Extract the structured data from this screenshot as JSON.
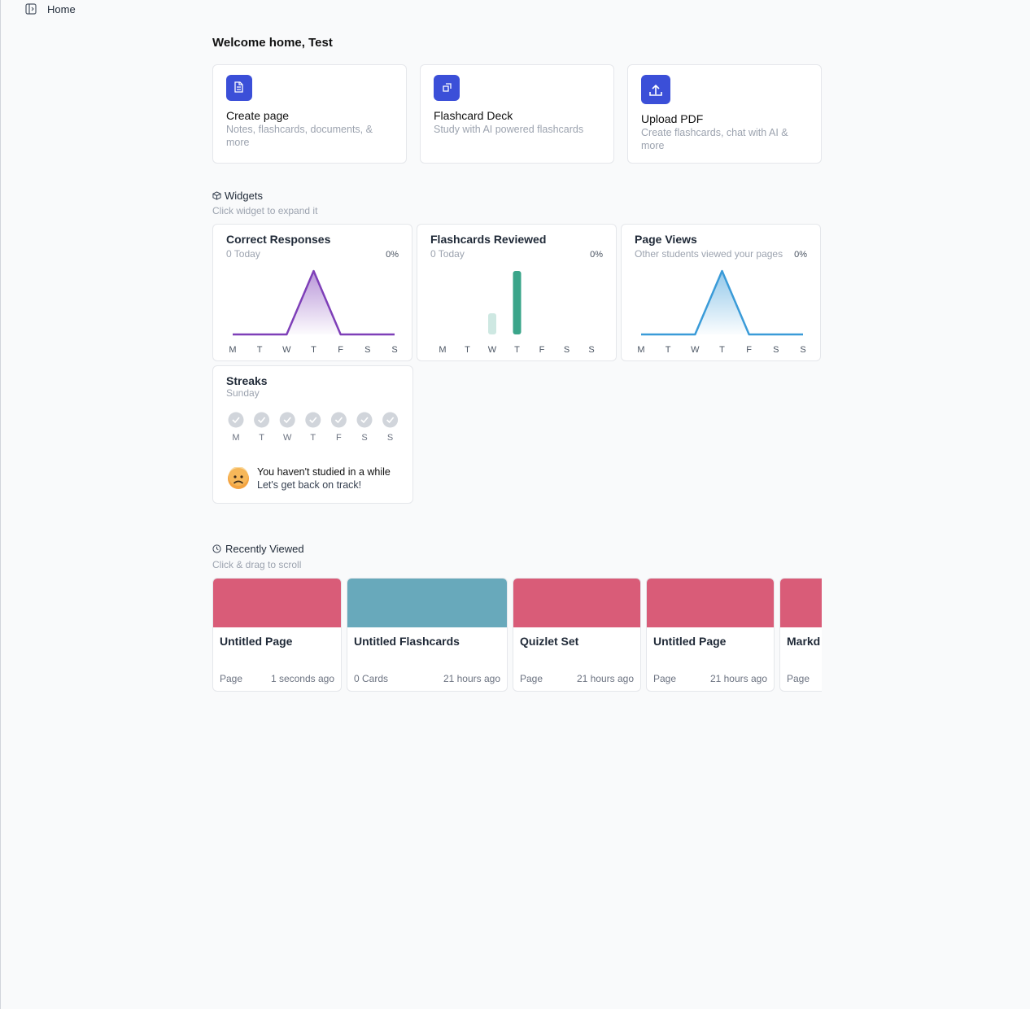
{
  "topbar": {
    "title": "Home"
  },
  "header": {
    "title": "Welcome home, Test"
  },
  "actions": [
    {
      "title": "Create page",
      "subtitle": "Notes, flashcards, documents, & more"
    },
    {
      "title": "Flashcard Deck",
      "subtitle": "Study with AI powered flashcards"
    },
    {
      "title": "Upload PDF",
      "subtitle": "Create flashcards, chat with AI & more"
    }
  ],
  "widgets": {
    "title": "Widgets",
    "subtitle": "Click widget to expand it",
    "days": [
      "M",
      "T",
      "W",
      "T",
      "F",
      "S",
      "S"
    ],
    "items": [
      {
        "title": "Correct Responses",
        "subtitle": "0 Today",
        "percent": "0%",
        "type": "line",
        "color": "#7e3fb8",
        "values": [
          0,
          0,
          0,
          1,
          0,
          0,
          0
        ]
      },
      {
        "title": "Flashcards Reviewed",
        "subtitle": "0 Today",
        "percent": "0%",
        "type": "bar",
        "color": "#3aa58a",
        "values": [
          0,
          0,
          1,
          3,
          0,
          0,
          0
        ]
      },
      {
        "title": "Page Views",
        "subtitle": "Other students viewed your pages",
        "percent": "0%",
        "type": "line",
        "color": "#3a9bd8",
        "values": [
          0,
          0,
          0,
          1,
          0,
          0,
          0
        ]
      }
    ]
  },
  "streaks": {
    "title": "Streaks",
    "subtitle": "Sunday",
    "message": "You haven't studied in a while",
    "submessage": "Let's get back on track!"
  },
  "recent": {
    "title": "Recently Viewed",
    "subtitle": "Click & drag to scroll",
    "items": [
      {
        "title": "Untitled Page",
        "kind": "Page",
        "age": "1 seconds ago",
        "color": "#d95c78"
      },
      {
        "title": "Untitled Flashcards",
        "kind": "0 Cards",
        "age": "21 hours ago",
        "color": "#68a9bb"
      },
      {
        "title": "Quizlet Set",
        "kind": "Page",
        "age": "21 hours ago",
        "color": "#d95c78"
      },
      {
        "title": "Untitled Page",
        "kind": "Page",
        "age": "21 hours ago",
        "color": "#d95c78"
      },
      {
        "title": "Markd",
        "kind": "Page",
        "color": "#d95c78"
      }
    ]
  }
}
